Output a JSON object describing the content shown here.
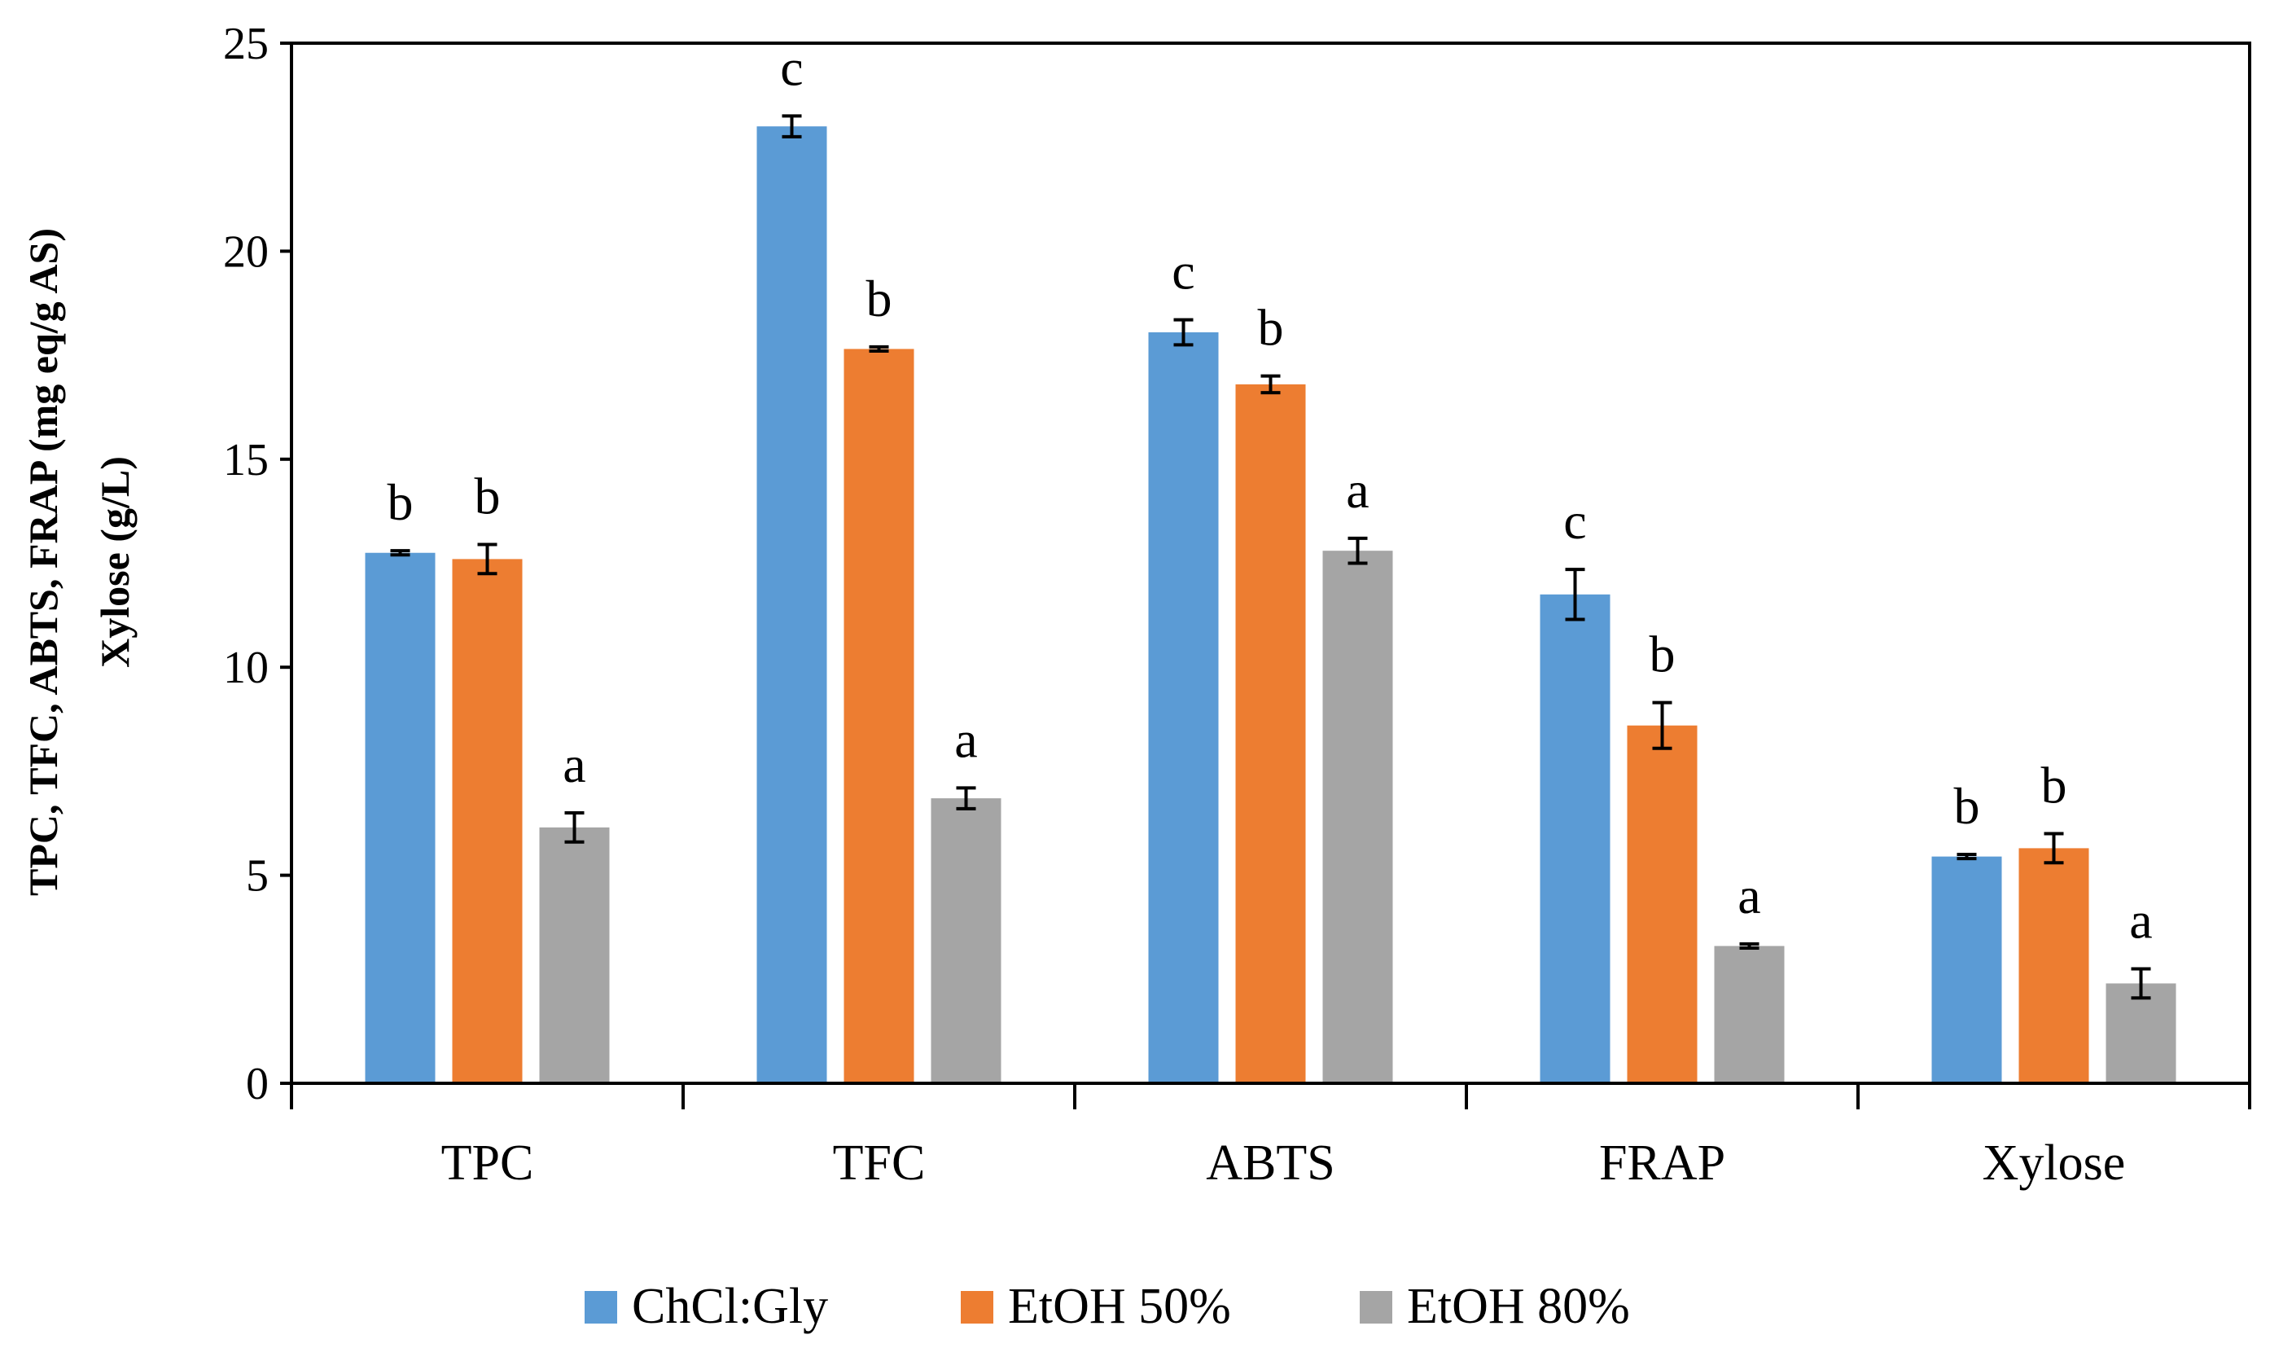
{
  "chart_data": {
    "type": "bar",
    "title": "",
    "xlabel": "",
    "ylabel_lines": [
      "TPC, TFC, ABTS, FRAP (mg eq/g AS)",
      "Xylose (g/L)"
    ],
    "ylim": [
      0,
      25
    ],
    "yticks": [
      "0",
      "5",
      "10",
      "15",
      "20",
      "25"
    ],
    "categories": [
      "TPC",
      "TFC",
      "ABTS",
      "FRAP",
      "Xylose"
    ],
    "series": [
      {
        "name": "ChCl:Gly",
        "color": "#5B9BD5",
        "values": [
          12.75,
          23.0,
          18.05,
          11.75,
          5.45
        ],
        "errors": [
          0.05,
          0.25,
          0.3,
          0.6,
          0.05
        ],
        "labels": [
          "b",
          "c",
          "c",
          "c",
          "b"
        ]
      },
      {
        "name": "EtOH 50%",
        "color": "#ED7D31",
        "values": [
          12.6,
          17.65,
          16.8,
          8.6,
          5.65
        ],
        "errors": [
          0.35,
          0.05,
          0.2,
          0.55,
          0.35
        ],
        "labels": [
          "b",
          "b",
          "b",
          "b",
          "b"
        ]
      },
      {
        "name": "EtOH 80%",
        "color": "#A5A5A5",
        "values": [
          6.15,
          6.85,
          12.8,
          3.3,
          2.4
        ],
        "errors": [
          0.35,
          0.25,
          0.3,
          0.05,
          0.35
        ],
        "labels": [
          "a",
          "a",
          "a",
          "a",
          "a"
        ]
      }
    ],
    "legend_position": "bottom-center",
    "grid": false
  }
}
